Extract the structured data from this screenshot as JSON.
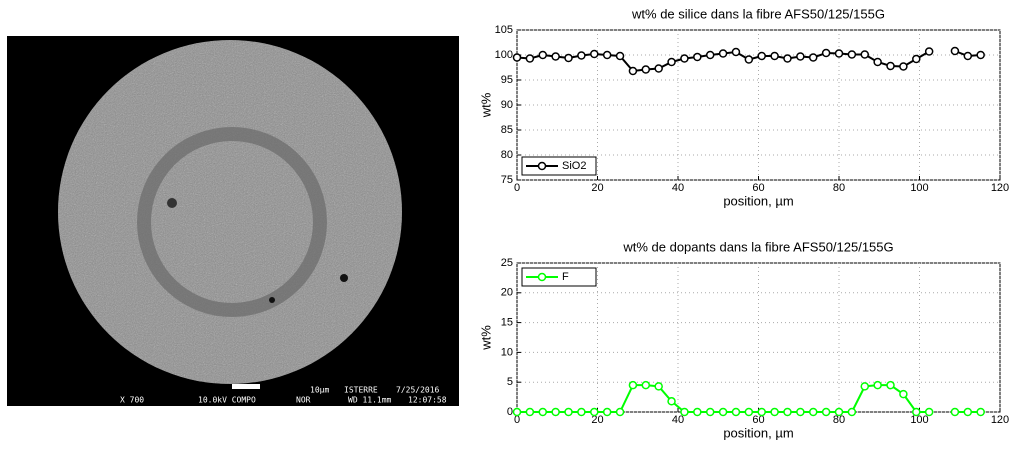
{
  "micrograph": {
    "scale": "10µm",
    "lab": "ISTERRE",
    "date": "7/25/2016",
    "magnification": "X 700",
    "mode": "10.0kV COMPO",
    "detector": "NOR",
    "wd": "WD 11.1mm",
    "time": "12:07:58"
  },
  "chart_data": [
    {
      "type": "line",
      "title": "wt% de silice dans la fibre AFS50/125/155G",
      "xlabel": "position, µm",
      "ylabel": "wt%",
      "x": [
        0,
        3.2,
        6.4,
        9.6,
        12.8,
        16,
        19.2,
        22.4,
        25.6,
        28.8,
        32,
        35.2,
        38.4,
        41.6,
        44.8,
        48,
        51.2,
        54.4,
        57.6,
        60.8,
        64,
        67.2,
        70.4,
        73.6,
        76.8,
        80,
        83.2,
        86.4,
        89.6,
        92.8,
        96,
        99.2,
        102.4,
        105.6,
        108.8,
        112,
        115.2
      ],
      "series": [
        {
          "name": "SiO2",
          "color": "#000000",
          "values": [
            99.5,
            99.3,
            100,
            99.7,
            99.4,
            99.9,
            100.2,
            100,
            99.8,
            96.8,
            97.1,
            97.3,
            98.6,
            99.3,
            99.6,
            100,
            100.3,
            100.6,
            99.1,
            99.8,
            99.8,
            99.3,
            99.7,
            99.5,
            100.4,
            100.3,
            100.1,
            100.1,
            98.6,
            97.8,
            97.7,
            99.2,
            100.7,
            null,
            100.8,
            99.8,
            100
          ]
        }
      ],
      "xlim": [
        0,
        120
      ],
      "xticks": [
        0,
        20,
        40,
        60,
        80,
        100,
        120
      ],
      "ylim": [
        75,
        105
      ],
      "yticks": [
        75,
        80,
        85,
        90,
        95,
        100,
        105
      ],
      "grid": true,
      "legend": "lower left"
    },
    {
      "type": "line",
      "title": "wt% de dopants dans la fibre AFS50/125/155G",
      "xlabel": "position, µm",
      "ylabel": "wt%",
      "x": [
        0,
        3.2,
        6.4,
        9.6,
        12.8,
        16,
        19.2,
        22.4,
        25.6,
        28.8,
        32,
        35.2,
        38.4,
        41.6,
        44.8,
        48,
        51.2,
        54.4,
        57.6,
        60.8,
        64,
        67.2,
        70.4,
        73.6,
        76.8,
        80,
        83.2,
        86.4,
        89.6,
        92.8,
        96,
        99.2,
        102.4,
        105.6,
        108.8,
        112,
        115.2
      ],
      "series": [
        {
          "name": "F",
          "color": "#00ff00",
          "values": [
            0,
            0,
            0,
            0,
            0,
            0,
            0,
            0,
            0,
            4.5,
            4.5,
            4.3,
            1.8,
            0,
            0,
            0,
            0,
            0,
            0,
            0,
            0,
            0,
            0,
            0,
            0,
            0,
            0,
            4.3,
            4.5,
            4.5,
            3,
            0,
            0,
            null,
            0,
            0,
            0
          ]
        }
      ],
      "xlim": [
        0,
        120
      ],
      "xticks": [
        0,
        20,
        40,
        60,
        80,
        100,
        120
      ],
      "ylim": [
        0,
        25
      ],
      "yticks": [
        0,
        5,
        10,
        15,
        20,
        25
      ],
      "grid": true,
      "legend": "upper left"
    }
  ]
}
